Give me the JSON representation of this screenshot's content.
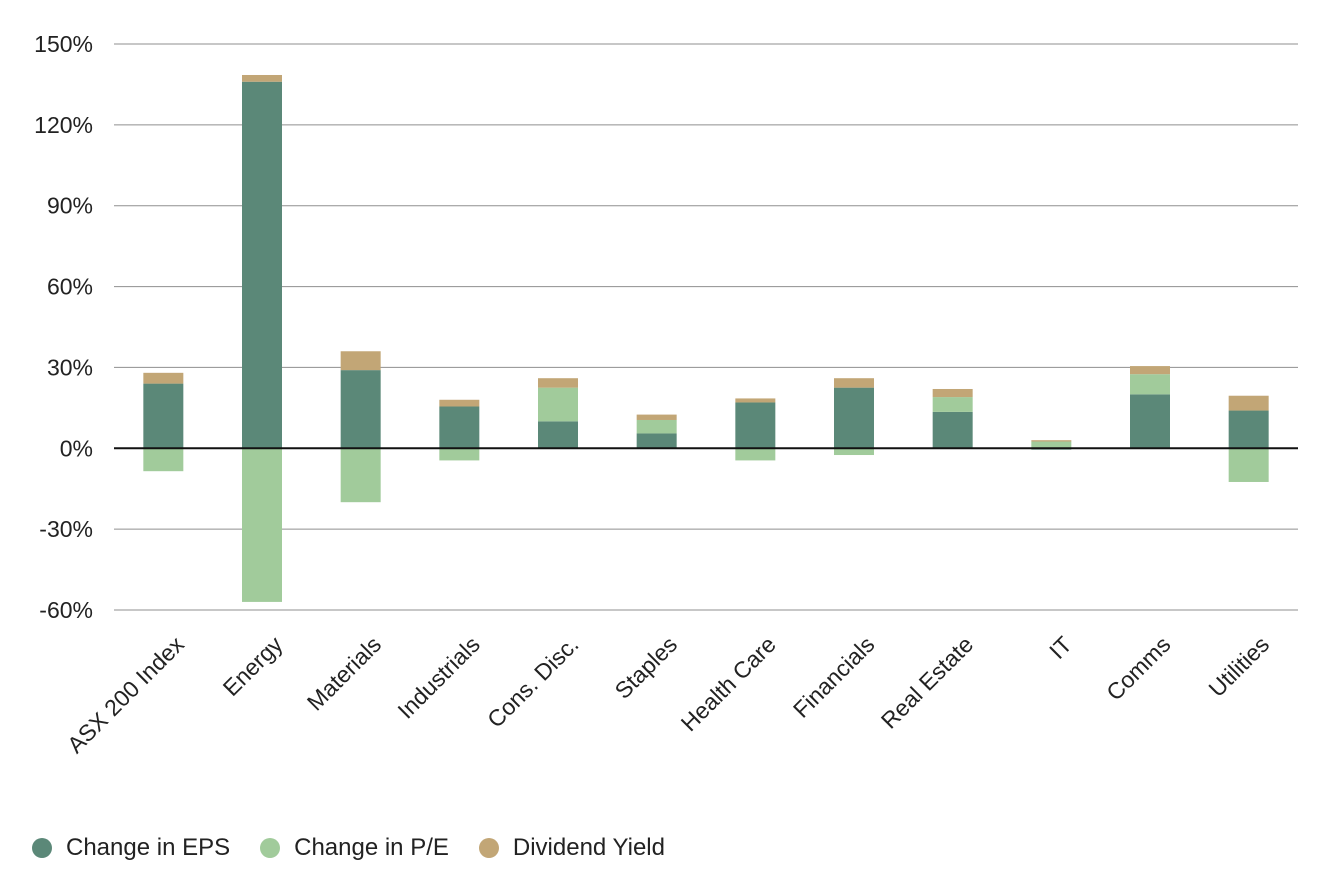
{
  "chart_data": {
    "type": "bar",
    "stacked": true,
    "categories": [
      "ASX 200 Index",
      "Energy",
      "Materials",
      "Industrials",
      "Cons. Disc.",
      "Staples",
      "Health Care",
      "Financials",
      "Real Estate",
      "IT",
      "Comms",
      "Utilities"
    ],
    "series": [
      {
        "name": "Change in EPS",
        "color": "#5b8878",
        "values": [
          24,
          136,
          29,
          15.5,
          10,
          5.5,
          17,
          22.5,
          13.5,
          -0.5,
          20,
          14
        ]
      },
      {
        "name": "Change in P/E",
        "color": "#a1cb9b",
        "values": [
          -8.5,
          -57,
          -20,
          -4.5,
          12.5,
          5,
          -4.5,
          -2.5,
          5.5,
          2.5,
          7.5,
          -12.5
        ]
      },
      {
        "name": "Dividend Yield",
        "color": "#c2a676",
        "values": [
          4,
          2.5,
          7,
          2.5,
          3.5,
          2,
          1.5,
          3.5,
          3,
          0.5,
          3,
          5.5
        ]
      }
    ],
    "y_ticks": [
      "150%",
      "120%",
      "90%",
      "60%",
      "30%",
      "0%",
      "-30%",
      "-60%"
    ],
    "y_tick_values": [
      150,
      120,
      90,
      60,
      30,
      0,
      -30,
      -60
    ],
    "ylim": [
      -60,
      150
    ],
    "grid": true,
    "legend_position": "bottom-left",
    "title": "",
    "xlabel": "",
    "ylabel": ""
  }
}
